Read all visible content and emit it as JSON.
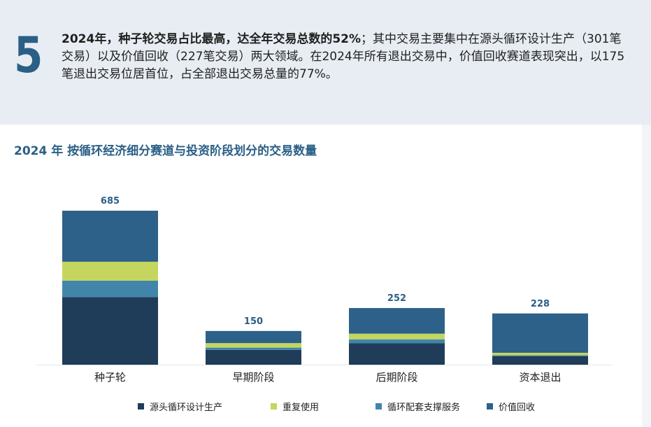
{
  "header": {
    "number": "5",
    "summary_bold": "2024年，种子轮交易占比最高，达全年交易总数的52%",
    "summary_rest": "；其中交易主要集中在源头循环设计生产（301笔交易）以及价值回收（227笔交易）两大领域。在2024年所有退出交易中，价值回收赛道表现突出，以175笔退出交易位居首位，占全部退出交易总量的77%。"
  },
  "chart_data": {
    "type": "bar",
    "stacked": true,
    "title": "2024 年 按循环经济细分赛道与投资阶段划分的交易数量",
    "categories": [
      "种子轮",
      "早期阶段",
      "后期阶段",
      "资本退出"
    ],
    "totals": [
      685,
      150,
      252,
      228
    ],
    "series": [
      {
        "name": "源头循环设计生产",
        "color": "#1f3c58",
        "values": [
          301,
          66,
          95,
          38
        ]
      },
      {
        "name": "循环配套支撑服务",
        "color": "#4186aa",
        "values": [
          73,
          10,
          18,
          4
        ]
      },
      {
        "name": "重复使用",
        "color": "#c5d65e",
        "values": [
          84,
          20,
          25,
          11
        ]
      },
      {
        "name": "价值回收",
        "color": "#2e6189",
        "values": [
          227,
          54,
          114,
          175
        ]
      }
    ],
    "legend": {
      "order": [
        "源头循环设计生产",
        "重复使用",
        "循环配套支撑服务",
        "价值回收"
      ],
      "placement": "bottom"
    }
  }
}
